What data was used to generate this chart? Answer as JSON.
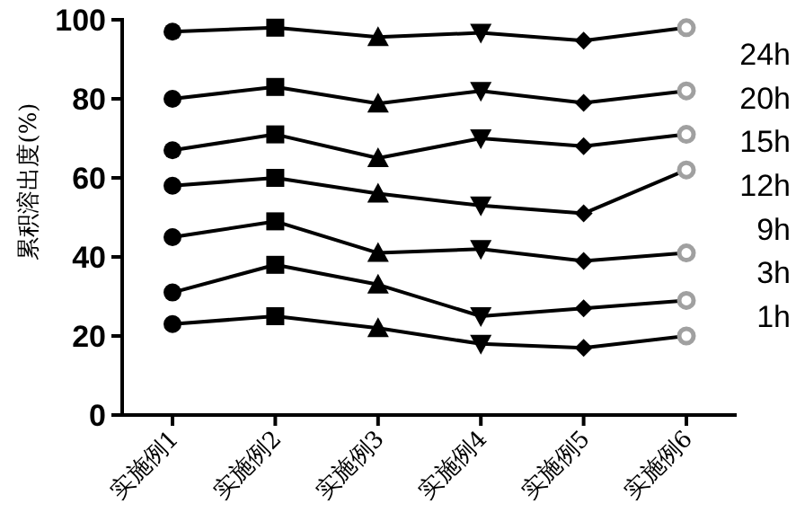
{
  "chart_data": {
    "type": "line",
    "ylabel": "累积溶出度(%)",
    "categories": [
      "实施例1",
      "实施例2",
      "实施例3",
      "实施例4",
      "实施例5",
      "实施例6"
    ],
    "series": [
      {
        "name": "24h",
        "color": "#000000",
        "values": [
          97,
          98,
          95.6,
          96.7,
          94.7,
          98
        ]
      },
      {
        "name": "20h",
        "color": "#000000",
        "values": [
          80,
          83,
          78.8,
          82,
          79,
          82
        ]
      },
      {
        "name": "15h",
        "color": "#000000",
        "values": [
          67,
          71,
          65,
          70,
          68,
          71
        ]
      },
      {
        "name": "12h",
        "color": "#000000",
        "values": [
          58,
          60,
          56,
          53,
          51,
          62
        ]
      },
      {
        "name": "9h",
        "color": "#000000",
        "values": [
          45,
          49,
          41,
          42,
          39,
          41
        ]
      },
      {
        "name": "3h",
        "color": "#000000",
        "values": [
          31,
          38,
          33,
          25,
          27,
          29
        ]
      },
      {
        "name": "1h",
        "color": "#000000",
        "values": [
          23,
          25,
          22,
          18,
          17,
          20
        ]
      }
    ],
    "marker": [
      "circle",
      "square",
      "triangle",
      "triangle-down",
      "diamond",
      "circle-open"
    ],
    "colors": [
      "#000000",
      "#000000",
      "#000000",
      "#000000",
      "#000000",
      "#a0a0a0"
    ],
    "ylim": [
      0,
      100
    ],
    "yticks": [
      0,
      20,
      40,
      60,
      80,
      100
    ],
    "grid": false,
    "legend": "right",
    "line_style": "solid"
  }
}
